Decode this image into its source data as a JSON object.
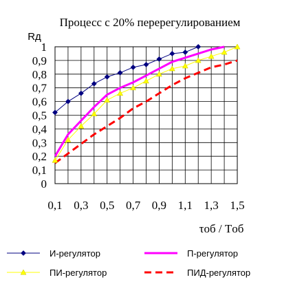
{
  "chart_data": {
    "type": "line",
    "title": "Процесс с 20% перерегулированием",
    "ylabel": "Rд",
    "xlabel_parts": [
      "τоб",
      " / ",
      "Tоб"
    ],
    "xlim": [
      0.1,
      1.5
    ],
    "ylim": [
      0,
      1
    ],
    "grid": true,
    "legend_position": "bottom",
    "x_ticks": [
      "0,1",
      "0,3",
      "0,5",
      "0,7",
      "0,9",
      "1,1",
      "1,3",
      "1,5"
    ],
    "y_ticks": [
      "0",
      "0,1",
      "0,2",
      "0,3",
      "0,4",
      "0,5",
      "0,6",
      "0,7",
      "0,8",
      "0,9",
      "1"
    ],
    "series": [
      {
        "name": "И-регулятор",
        "color": "#000080",
        "style": "thin-with-diamond-markers",
        "x": [
          0.1,
          0.2,
          0.3,
          0.4,
          0.5,
          0.6,
          0.7,
          0.8,
          0.9,
          1.0,
          1.1,
          1.2
        ],
        "y": [
          0.52,
          0.6,
          0.66,
          0.73,
          0.78,
          0.81,
          0.85,
          0.87,
          0.91,
          0.95,
          0.96,
          1.0
        ]
      },
      {
        "name": "П-регулятор",
        "color": "#ff00ff",
        "style": "thick-solid",
        "x": [
          0.1,
          0.2,
          0.3,
          0.4,
          0.5,
          0.6,
          0.7,
          0.8,
          0.9,
          1.0,
          1.1,
          1.2,
          1.3,
          1.4
        ],
        "y": [
          0.2,
          0.36,
          0.46,
          0.56,
          0.65,
          0.7,
          0.74,
          0.79,
          0.84,
          0.89,
          0.92,
          0.95,
          0.98,
          1.0
        ]
      },
      {
        "name": "ПИ-регулятор",
        "color": "#ffff00",
        "style": "thin-with-triangle-markers",
        "x": [
          0.1,
          0.2,
          0.3,
          0.4,
          0.5,
          0.6,
          0.7,
          0.8,
          0.9,
          1.0,
          1.1,
          1.2,
          1.3,
          1.4,
          1.5
        ],
        "y": [
          0.17,
          0.32,
          0.42,
          0.51,
          0.61,
          0.66,
          0.7,
          0.75,
          0.8,
          0.84,
          0.86,
          0.9,
          0.93,
          0.96,
          1.0
        ]
      },
      {
        "name": "ПИД-регулятор",
        "color": "#ff0000",
        "style": "thick-dashed",
        "x": [
          0.1,
          0.2,
          0.3,
          0.4,
          0.5,
          0.6,
          0.7,
          0.8,
          0.9,
          1.0,
          1.1,
          1.2,
          1.3,
          1.4,
          1.5
        ],
        "y": [
          0.15,
          0.22,
          0.29,
          0.36,
          0.42,
          0.48,
          0.55,
          0.6,
          0.66,
          0.72,
          0.77,
          0.81,
          0.85,
          0.87,
          0.9
        ]
      }
    ]
  }
}
